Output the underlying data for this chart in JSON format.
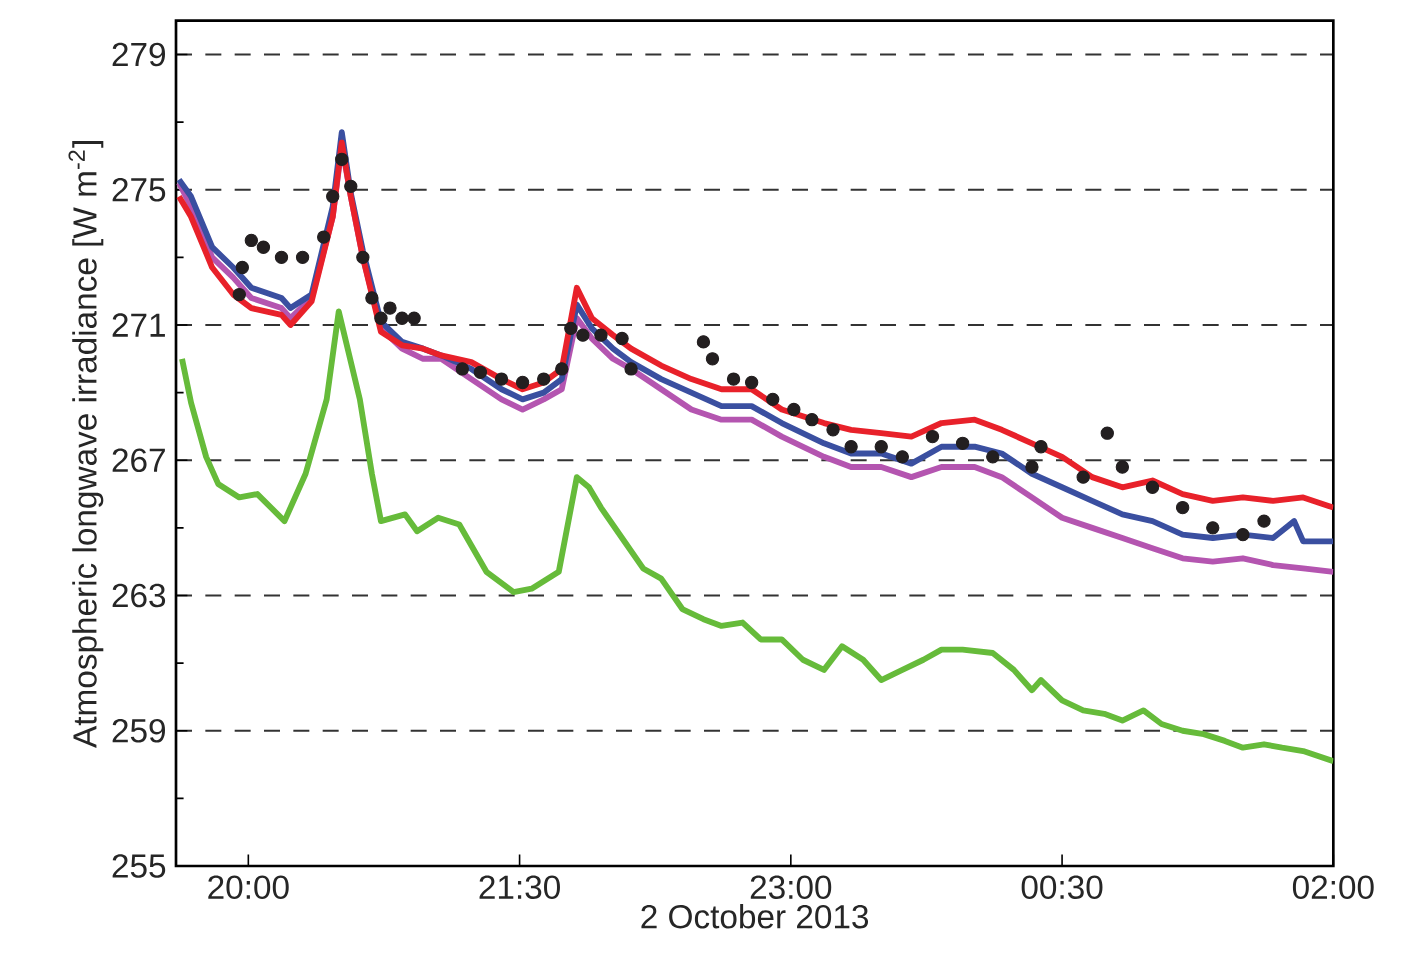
{
  "chart_data": {
    "type": "line",
    "xlabel": "2 October 2013",
    "ylabel": "Atmospheric longwave irradiance [W m$^{-2}$]",
    "xlim": [
      "2013-10-02T19:36",
      "2013-10-03T02:00"
    ],
    "ylim": [
      255,
      280
    ],
    "xticks": [
      {
        "value": "2013-10-02T20:00",
        "label": "20:00"
      },
      {
        "value": "2013-10-02T21:30",
        "label": "21:30"
      },
      {
        "value": "2013-10-02T23:00",
        "label": "23:00"
      },
      {
        "value": "2013-10-03T00:30",
        "label": "00:30"
      },
      {
        "value": "2013-10-03T02:00",
        "label": "02:00"
      }
    ],
    "yticks": [
      255,
      {
        "value": 257,
        "label": null
      },
      259,
      {
        "value": 261,
        "label": null
      },
      263,
      {
        "value": 265,
        "label": null
      },
      267,
      {
        "value": 269,
        "label": null
      },
      271,
      {
        "value": 273,
        "label": null
      },
      275,
      {
        "value": 277,
        "label": null
      },
      279
    ],
    "grid": "y",
    "line_style": "solid",
    "series": [
      {
        "color": "#66bb3a",
        "x": [
          "2013-10-02T19:38",
          "2013-10-02T19:41",
          "2013-10-02T19:46",
          "2013-10-02T19:50",
          "2013-10-02T19:57",
          "2013-10-02T20:03",
          "2013-10-02T20:12",
          "2013-10-02T20:19",
          "2013-10-02T20:26",
          "2013-10-02T20:30",
          "2013-10-02T20:37",
          "2013-10-02T20:41",
          "2013-10-02T20:44",
          "2013-10-02T20:52",
          "2013-10-02T20:56",
          "2013-10-02T21:03",
          "2013-10-02T21:10",
          "2013-10-02T21:19",
          "2013-10-02T21:28",
          "2013-10-02T21:34",
          "2013-10-02T21:43",
          "2013-10-02T21:49",
          "2013-10-02T21:53",
          "2013-10-02T21:57",
          "2013-10-02T22:04",
          "2013-10-02T22:11",
          "2013-10-02T22:17",
          "2013-10-02T22:24",
          "2013-10-02T22:31",
          "2013-10-02T22:37",
          "2013-10-02T22:44",
          "2013-10-02T22:50",
          "2013-10-02T22:57",
          "2013-10-02T23:04",
          "2013-10-02T23:11",
          "2013-10-02T23:17",
          "2013-10-02T23:24",
          "2013-10-02T23:30",
          "2013-10-02T23:37",
          "2013-10-02T23:44",
          "2013-10-02T23:50",
          "2013-10-02T23:57",
          "2013-10-03T00:07",
          "2013-10-03T00:14",
          "2013-10-03T00:20",
          "2013-10-03T00:23",
          "2013-10-03T00:30",
          "2013-10-03T00:37",
          "2013-10-03T00:44",
          "2013-10-03T00:50",
          "2013-10-03T00:57",
          "2013-10-03T01:03",
          "2013-10-03T01:10",
          "2013-10-03T01:17",
          "2013-10-03T01:24",
          "2013-10-03T01:30",
          "2013-10-03T01:37",
          "2013-10-03T01:43",
          "2013-10-03T01:50",
          "2013-10-03T02:00"
        ],
        "values": [
          270.0,
          268.7,
          267.1,
          266.3,
          265.9,
          266.0,
          265.2,
          266.6,
          268.8,
          271.4,
          268.8,
          266.6,
          265.2,
          265.4,
          264.9,
          265.3,
          265.1,
          263.7,
          263.1,
          263.2,
          263.7,
          266.5,
          266.2,
          265.6,
          264.7,
          263.8,
          263.5,
          262.6,
          262.3,
          262.1,
          262.2,
          261.7,
          261.7,
          261.1,
          260.8,
          261.5,
          261.1,
          260.5,
          260.8,
          261.1,
          261.4,
          261.4,
          261.3,
          260.8,
          260.2,
          260.5,
          259.9,
          259.6,
          259.5,
          259.3,
          259.6,
          259.2,
          259.0,
          258.9,
          258.7,
          258.5,
          258.6,
          258.5,
          258.4,
          258.1
        ]
      },
      {
        "color": "#b455b0",
        "x": [
          "2013-10-02T19:37",
          "2013-10-02T19:41",
          "2013-10-02T19:48",
          "2013-10-02T19:55",
          "2013-10-02T20:01",
          "2013-10-02T20:11",
          "2013-10-02T20:14",
          "2013-10-02T20:21",
          "2013-10-02T20:28",
          "2013-10-02T20:31",
          "2013-10-02T20:34",
          "2013-10-02T20:38",
          "2013-10-02T20:44",
          "2013-10-02T20:51",
          "2013-10-02T20:58",
          "2013-10-02T21:04",
          "2013-10-02T21:14",
          "2013-10-02T21:24",
          "2013-10-02T21:31",
          "2013-10-02T21:38",
          "2013-10-02T21:44",
          "2013-10-02T21:49",
          "2013-10-02T21:54",
          "2013-10-02T22:01",
          "2013-10-02T22:07",
          "2013-10-02T22:17",
          "2013-10-02T22:27",
          "2013-10-02T22:37",
          "2013-10-02T22:47",
          "2013-10-02T22:57",
          "2013-10-02T23:11",
          "2013-10-02T23:20",
          "2013-10-02T23:30",
          "2013-10-02T23:40",
          "2013-10-02T23:50",
          "2013-10-03T00:01",
          "2013-10-03T00:10",
          "2013-10-03T00:20",
          "2013-10-03T00:30",
          "2013-10-03T00:40",
          "2013-10-03T00:50",
          "2013-10-03T01:00",
          "2013-10-03T01:10",
          "2013-10-03T01:20",
          "2013-10-03T01:30",
          "2013-10-03T01:40",
          "2013-10-03T01:50",
          "2013-10-03T02:00"
        ],
        "values": [
          275.2,
          274.5,
          273.0,
          272.4,
          271.8,
          271.5,
          271.2,
          271.8,
          274.2,
          276.3,
          274.8,
          273.0,
          270.9,
          270.3,
          270.0,
          270.0,
          269.4,
          268.8,
          268.5,
          268.8,
          269.1,
          271.2,
          270.6,
          270.0,
          269.7,
          269.1,
          268.5,
          268.2,
          268.2,
          267.7,
          267.1,
          266.8,
          266.8,
          266.5,
          266.8,
          266.8,
          266.5,
          265.9,
          265.3,
          265.0,
          264.7,
          264.4,
          264.1,
          264.0,
          264.1,
          263.9,
          263.8,
          263.7
        ]
      },
      {
        "color": "#3a4fa0",
        "x": [
          "2013-10-02T19:37",
          "2013-10-02T19:41",
          "2013-10-02T19:48",
          "2013-10-02T19:55",
          "2013-10-02T20:01",
          "2013-10-02T20:11",
          "2013-10-02T20:14",
          "2013-10-02T20:21",
          "2013-10-02T20:28",
          "2013-10-02T20:31",
          "2013-10-02T20:34",
          "2013-10-02T20:38",
          "2013-10-02T20:44",
          "2013-10-02T20:51",
          "2013-10-02T20:58",
          "2013-10-02T21:04",
          "2013-10-02T21:14",
          "2013-10-02T21:24",
          "2013-10-02T21:31",
          "2013-10-02T21:38",
          "2013-10-02T21:44",
          "2013-10-02T21:49",
          "2013-10-02T21:54",
          "2013-10-02T22:01",
          "2013-10-02T22:07",
          "2013-10-02T22:17",
          "2013-10-02T22:27",
          "2013-10-02T22:37",
          "2013-10-02T22:47",
          "2013-10-02T22:57",
          "2013-10-02T23:11",
          "2013-10-02T23:20",
          "2013-10-02T23:30",
          "2013-10-02T23:40",
          "2013-10-02T23:50",
          "2013-10-03T00:01",
          "2013-10-03T00:10",
          "2013-10-03T00:20",
          "2013-10-03T00:30",
          "2013-10-03T00:40",
          "2013-10-03T00:50",
          "2013-10-03T01:00",
          "2013-10-03T01:10",
          "2013-10-03T01:20",
          "2013-10-03T01:30",
          "2013-10-03T01:40",
          "2013-10-03T01:47",
          "2013-10-03T01:50",
          "2013-10-03T02:00"
        ],
        "values": [
          275.3,
          274.8,
          273.3,
          272.7,
          272.1,
          271.8,
          271.5,
          271.9,
          274.5,
          276.7,
          274.9,
          273.2,
          271.1,
          270.5,
          270.3,
          270.1,
          269.7,
          269.1,
          268.8,
          269.0,
          269.4,
          271.6,
          270.9,
          270.3,
          269.9,
          269.4,
          269.0,
          268.6,
          268.6,
          268.1,
          267.5,
          267.2,
          267.2,
          266.9,
          267.4,
          267.4,
          267.2,
          266.6,
          266.2,
          265.8,
          265.4,
          265.2,
          264.8,
          264.7,
          264.8,
          264.7,
          265.2,
          264.6,
          264.6
        ]
      },
      {
        "color": "#e8212a",
        "x": [
          "2013-10-02T19:37",
          "2013-10-02T19:41",
          "2013-10-02T19:48",
          "2013-10-02T19:55",
          "2013-10-02T20:01",
          "2013-10-02T20:11",
          "2013-10-02T20:14",
          "2013-10-02T20:21",
          "2013-10-02T20:28",
          "2013-10-02T20:31",
          "2013-10-02T20:34",
          "2013-10-02T20:38",
          "2013-10-02T20:44",
          "2013-10-02T20:51",
          "2013-10-02T20:58",
          "2013-10-02T21:04",
          "2013-10-02T21:14",
          "2013-10-02T21:24",
          "2013-10-02T21:31",
          "2013-10-02T21:38",
          "2013-10-02T21:44",
          "2013-10-02T21:49",
          "2013-10-02T21:54",
          "2013-10-02T22:01",
          "2013-10-02T22:07",
          "2013-10-02T22:17",
          "2013-10-02T22:27",
          "2013-10-02T22:37",
          "2013-10-02T22:47",
          "2013-10-02T22:57",
          "2013-10-02T23:11",
          "2013-10-02T23:20",
          "2013-10-02T23:30",
          "2013-10-02T23:40",
          "2013-10-02T23:50",
          "2013-10-03T00:01",
          "2013-10-03T00:10",
          "2013-10-03T00:20",
          "2013-10-03T00:30",
          "2013-10-03T00:40",
          "2013-10-03T00:50",
          "2013-10-03T01:00",
          "2013-10-03T01:10",
          "2013-10-03T01:20",
          "2013-10-03T01:30",
          "2013-10-03T01:40",
          "2013-10-03T01:50",
          "2013-10-03T02:00"
        ],
        "values": [
          274.8,
          274.2,
          272.7,
          271.9,
          271.5,
          271.3,
          271.0,
          271.7,
          274.2,
          276.4,
          274.8,
          273.0,
          270.8,
          270.4,
          270.3,
          270.1,
          269.9,
          269.4,
          269.1,
          269.3,
          269.7,
          272.1,
          271.2,
          270.7,
          270.3,
          269.8,
          269.4,
          269.1,
          269.1,
          268.5,
          268.1,
          267.9,
          267.8,
          267.7,
          268.1,
          268.2,
          267.9,
          267.5,
          267.1,
          266.5,
          266.2,
          266.4,
          266.0,
          265.8,
          265.9,
          265.8,
          265.9,
          265.6
        ]
      },
      {
        "type": "scatter",
        "marker": "circle",
        "color": "#231f20",
        "x": [
          "2013-10-02T19:57",
          "2013-10-02T19:58",
          "2013-10-02T20:01",
          "2013-10-02T20:05",
          "2013-10-02T20:11",
          "2013-10-02T20:18",
          "2013-10-02T20:25",
          "2013-10-02T20:28",
          "2013-10-02T20:31",
          "2013-10-02T20:34",
          "2013-10-02T20:38",
          "2013-10-02T20:41",
          "2013-10-02T20:44",
          "2013-10-02T20:47",
          "2013-10-02T20:51",
          "2013-10-02T20:55",
          "2013-10-02T21:11",
          "2013-10-02T21:17",
          "2013-10-02T21:24",
          "2013-10-02T21:31",
          "2013-10-02T21:38",
          "2013-10-02T21:44",
          "2013-10-02T21:47",
          "2013-10-02T21:51",
          "2013-10-02T21:57",
          "2013-10-02T22:04",
          "2013-10-02T22:07",
          "2013-10-02T22:31",
          "2013-10-02T22:34",
          "2013-10-02T22:41",
          "2013-10-02T22:47",
          "2013-10-02T22:54",
          "2013-10-02T23:01",
          "2013-10-02T23:07",
          "2013-10-02T23:14",
          "2013-10-02T23:20",
          "2013-10-02T23:30",
          "2013-10-02T23:37",
          "2013-10-02T23:47",
          "2013-10-02T23:57",
          "2013-10-03T00:07",
          "2013-10-03T00:20",
          "2013-10-03T00:23",
          "2013-10-03T00:37",
          "2013-10-03T00:45",
          "2013-10-03T00:50",
          "2013-10-03T01:00",
          "2013-10-03T01:10",
          "2013-10-03T01:20",
          "2013-10-03T01:30",
          "2013-10-03T01:37"
        ],
        "values": [
          271.9,
          272.7,
          273.5,
          273.3,
          273.0,
          273.0,
          273.6,
          274.8,
          275.9,
          275.1,
          273.0,
          271.8,
          271.2,
          271.5,
          271.2,
          271.2,
          269.7,
          269.6,
          269.4,
          269.3,
          269.4,
          269.7,
          270.9,
          270.7,
          270.7,
          270.6,
          269.7,
          270.5,
          270.0,
          269.4,
          269.3,
          268.8,
          268.5,
          268.2,
          267.9,
          267.4,
          267.4,
          267.1,
          267.7,
          267.5,
          267.1,
          266.8,
          267.4,
          266.5,
          267.8,
          266.8,
          266.2,
          265.6,
          265.0,
          264.8,
          265.2
        ]
      }
    ]
  }
}
